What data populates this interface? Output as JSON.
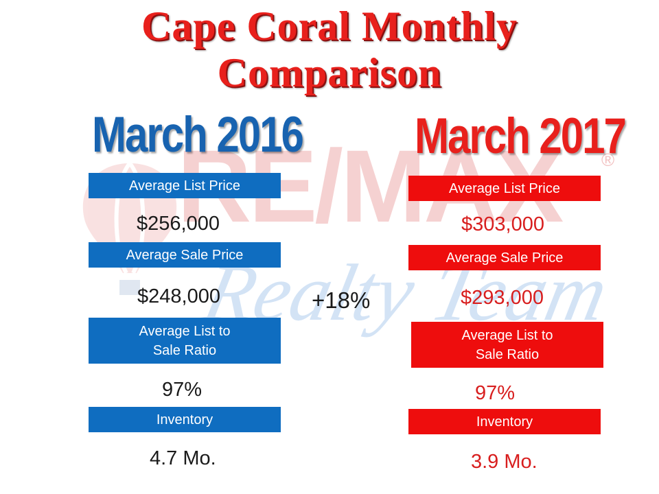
{
  "slide": {
    "title_line1": "Cape Coral Monthly",
    "title_line2": "Comparison",
    "watermark": {
      "brand": "RE/MAX",
      "registered_mark": "®",
      "script": "Realty Team",
      "colors": {
        "brand": "#f4c9c9",
        "script": "#cfe0f4"
      }
    },
    "colors": {
      "blue": "#0f6dc0",
      "red": "#ee0d0d",
      "title_red": "#e8201c",
      "year_blue": "#1863b0"
    }
  },
  "left_column": {
    "heading": "March 2016",
    "list_price_label": "Average List Price",
    "list_price_value": "$256,000",
    "sale_price_label": "Average Sale Price",
    "sale_price_value": "$248,000",
    "ratio_label": "Average List to\nSale Ratio",
    "ratio_value": "97%",
    "inventory_label": "Inventory",
    "inventory_value": "4.7 Mo."
  },
  "change": {
    "sale_price_change": "+18%"
  },
  "right_column": {
    "heading": "March 2017",
    "list_price_label": "Average List Price",
    "list_price_value": "$303,000",
    "sale_price_label": "Average Sale Price",
    "sale_price_value": "$293,000",
    "ratio_label": "Average List to\nSale Ratio",
    "ratio_value": "97%",
    "inventory_label": "Inventory",
    "inventory_value": "3.9 Mo."
  }
}
